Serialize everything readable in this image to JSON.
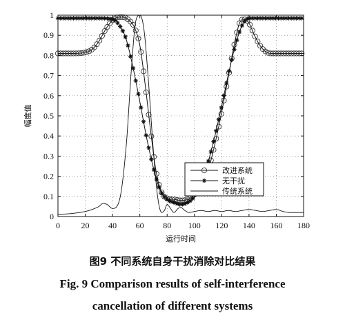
{
  "chart_data": {
    "type": "line",
    "xlabel": "运行时间",
    "ylabel": "幅度值",
    "xlim": [
      0,
      180
    ],
    "ylim": [
      0,
      1
    ],
    "xticks": [
      "0",
      "20",
      "40",
      "60",
      "80",
      "100",
      "120",
      "140",
      "160",
      "180"
    ],
    "yticks": [
      "0",
      "0.1",
      "0.2",
      "0.3",
      "0.4",
      "0.5",
      "0.6",
      "0.7",
      "0.8",
      "0.9",
      "1"
    ],
    "legend_position": "bottom-right",
    "series": [
      {
        "name": "改进系统",
        "marker": "circle",
        "x": [
          0,
          10,
          20,
          25,
          30,
          35,
          40,
          45,
          48,
          52,
          56,
          60,
          64,
          68,
          72,
          76,
          80,
          85,
          90,
          95,
          100,
          105,
          110,
          115,
          120,
          125,
          130,
          133,
          136,
          140,
          144,
          148,
          152,
          156,
          160,
          170,
          180
        ],
        "y": [
          0.81,
          0.81,
          0.815,
          0.83,
          0.87,
          0.93,
          0.975,
          0.99,
          0.99,
          0.975,
          0.94,
          0.85,
          0.65,
          0.42,
          0.22,
          0.12,
          0.09,
          0.085,
          0.08,
          0.085,
          0.11,
          0.16,
          0.23,
          0.36,
          0.52,
          0.7,
          0.88,
          0.96,
          0.98,
          0.96,
          0.9,
          0.85,
          0.82,
          0.81,
          0.81,
          0.81,
          0.81
        ]
      },
      {
        "name": "无干扰",
        "marker": "star",
        "x": [
          0,
          20,
          30,
          40,
          45,
          50,
          55,
          60,
          65,
          70,
          75,
          80,
          85,
          90,
          95,
          100,
          105,
          110,
          115,
          120,
          125,
          130,
          135,
          140,
          145,
          150,
          160,
          180
        ],
        "y": [
          0.985,
          0.985,
          0.985,
          0.98,
          0.95,
          0.88,
          0.74,
          0.57,
          0.39,
          0.24,
          0.13,
          0.085,
          0.07,
          0.06,
          0.07,
          0.1,
          0.17,
          0.27,
          0.4,
          0.55,
          0.71,
          0.85,
          0.95,
          0.985,
          0.985,
          0.985,
          0.985,
          0.985
        ]
      },
      {
        "name": "传统系统",
        "marker": "none",
        "x": [
          0,
          10,
          20,
          25,
          30,
          33,
          36,
          40,
          45,
          50,
          54,
          57,
          60,
          63,
          66,
          70,
          73,
          76,
          78,
          80,
          82,
          85,
          88,
          90,
          93,
          96,
          100,
          105,
          110,
          115,
          120,
          125,
          130,
          135,
          140,
          145,
          150,
          155,
          160,
          165,
          170,
          180
        ],
        "y": [
          0.01,
          0.015,
          0.025,
          0.035,
          0.05,
          0.065,
          0.06,
          0.04,
          0.08,
          0.35,
          0.75,
          0.97,
          1.0,
          0.93,
          0.7,
          0.32,
          0.1,
          0.02,
          0.03,
          0.06,
          0.045,
          0.02,
          0.04,
          0.045,
          0.03,
          0.02,
          0.025,
          0.03,
          0.025,
          0.03,
          0.025,
          0.03,
          0.025,
          0.03,
          0.035,
          0.03,
          0.025,
          0.03,
          0.035,
          0.025,
          0.02,
          0.02
        ]
      }
    ]
  },
  "captions": {
    "cn": "图9  不同系统自身干扰消除对比结果",
    "en_line1": "Fig. 9  Comparison results of self-interference",
    "en_line2": "cancellation of different systems"
  }
}
